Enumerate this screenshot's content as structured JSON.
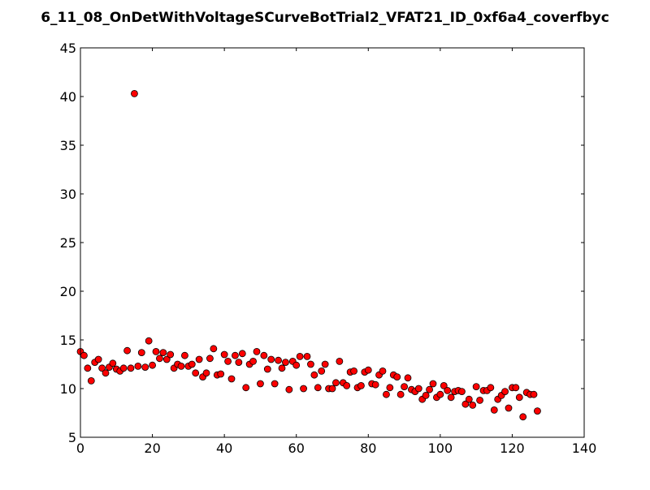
{
  "chart_data": {
    "type": "scatter",
    "title": "6_11_08_OnDetWithVoltageSCurveBotTrial2_VFAT21_ID_0xf6a4_coverfbyc",
    "xlabel": "",
    "ylabel": "",
    "xlim": [
      0,
      140
    ],
    "ylim": [
      5,
      45
    ],
    "xticks": [
      "0",
      "20",
      "40",
      "60",
      "80",
      "100",
      "120",
      "140"
    ],
    "yticks": [
      "5",
      "10",
      "15",
      "20",
      "25",
      "30",
      "35",
      "40",
      "45"
    ],
    "grid": false,
    "legend": "none",
    "marker_color": "#ff0000",
    "marker_edge_color": "#000000",
    "points": [
      [
        0,
        13.8
      ],
      [
        1,
        13.4
      ],
      [
        2,
        12.1
      ],
      [
        3,
        10.8
      ],
      [
        4,
        12.7
      ],
      [
        5,
        13.0
      ],
      [
        6,
        12.1
      ],
      [
        7,
        11.6
      ],
      [
        8,
        12.2
      ],
      [
        9,
        12.6
      ],
      [
        10,
        12.0
      ],
      [
        11,
        11.8
      ],
      [
        12,
        12.1
      ],
      [
        13,
        13.9
      ],
      [
        14,
        12.1
      ],
      [
        15,
        40.3
      ],
      [
        16,
        12.3
      ],
      [
        17,
        13.7
      ],
      [
        18,
        12.2
      ],
      [
        19,
        14.9
      ],
      [
        20,
        12.4
      ],
      [
        21,
        13.8
      ],
      [
        22,
        13.1
      ],
      [
        23,
        13.7
      ],
      [
        24,
        13.0
      ],
      [
        25,
        13.5
      ],
      [
        26,
        12.1
      ],
      [
        27,
        12.5
      ],
      [
        28,
        12.3
      ],
      [
        29,
        13.4
      ],
      [
        30,
        12.3
      ],
      [
        31,
        12.5
      ],
      [
        32,
        11.6
      ],
      [
        33,
        13.0
      ],
      [
        34,
        11.2
      ],
      [
        35,
        11.6
      ],
      [
        36,
        13.1
      ],
      [
        37,
        14.1
      ],
      [
        38,
        11.4
      ],
      [
        39,
        11.5
      ],
      [
        40,
        13.5
      ],
      [
        41,
        12.8
      ],
      [
        42,
        11.0
      ],
      [
        43,
        13.4
      ],
      [
        44,
        12.7
      ],
      [
        45,
        13.6
      ],
      [
        46,
        10.1
      ],
      [
        47,
        12.5
      ],
      [
        48,
        12.8
      ],
      [
        49,
        13.8
      ],
      [
        50,
        10.5
      ],
      [
        51,
        13.4
      ],
      [
        52,
        12.0
      ],
      [
        53,
        13.0
      ],
      [
        54,
        10.5
      ],
      [
        55,
        12.9
      ],
      [
        56,
        12.1
      ],
      [
        57,
        12.7
      ],
      [
        58,
        9.9
      ],
      [
        59,
        12.8
      ],
      [
        60,
        12.4
      ],
      [
        61,
        13.3
      ],
      [
        62,
        10.0
      ],
      [
        63,
        13.3
      ],
      [
        64,
        12.5
      ],
      [
        65,
        11.4
      ],
      [
        66,
        10.1
      ],
      [
        67,
        11.8
      ],
      [
        68,
        12.5
      ],
      [
        69,
        10.0
      ],
      [
        70,
        10.0
      ],
      [
        71,
        10.6
      ],
      [
        72,
        12.8
      ],
      [
        73,
        10.6
      ],
      [
        74,
        10.3
      ],
      [
        75,
        11.7
      ],
      [
        76,
        11.8
      ],
      [
        77,
        10.1
      ],
      [
        78,
        10.3
      ],
      [
        79,
        11.7
      ],
      [
        80,
        11.9
      ],
      [
        81,
        10.5
      ],
      [
        82,
        10.4
      ],
      [
        83,
        11.4
      ],
      [
        84,
        11.8
      ],
      [
        85,
        9.4
      ],
      [
        86,
        10.1
      ],
      [
        87,
        11.4
      ],
      [
        88,
        11.2
      ],
      [
        89,
        9.4
      ],
      [
        90,
        10.2
      ],
      [
        91,
        11.1
      ],
      [
        92,
        9.9
      ],
      [
        93,
        9.7
      ],
      [
        94,
        10.0
      ],
      [
        95,
        8.9
      ],
      [
        96,
        9.3
      ],
      [
        97,
        9.9
      ],
      [
        98,
        10.5
      ],
      [
        99,
        9.1
      ],
      [
        100,
        9.4
      ],
      [
        101,
        10.3
      ],
      [
        102,
        9.8
      ],
      [
        103,
        9.1
      ],
      [
        104,
        9.7
      ],
      [
        105,
        9.8
      ],
      [
        106,
        9.7
      ],
      [
        107,
        8.4
      ],
      [
        108,
        8.9
      ],
      [
        109,
        8.3
      ],
      [
        110,
        10.2
      ],
      [
        111,
        8.8
      ],
      [
        112,
        9.8
      ],
      [
        113,
        9.8
      ],
      [
        114,
        10.1
      ],
      [
        115,
        7.8
      ],
      [
        116,
        8.9
      ],
      [
        117,
        9.3
      ],
      [
        118,
        9.7
      ],
      [
        119,
        8.0
      ],
      [
        120,
        10.1
      ],
      [
        121,
        10.1
      ],
      [
        122,
        9.1
      ],
      [
        123,
        7.1
      ],
      [
        124,
        9.6
      ],
      [
        125,
        9.4
      ],
      [
        126,
        9.4
      ],
      [
        127,
        7.7
      ]
    ]
  }
}
